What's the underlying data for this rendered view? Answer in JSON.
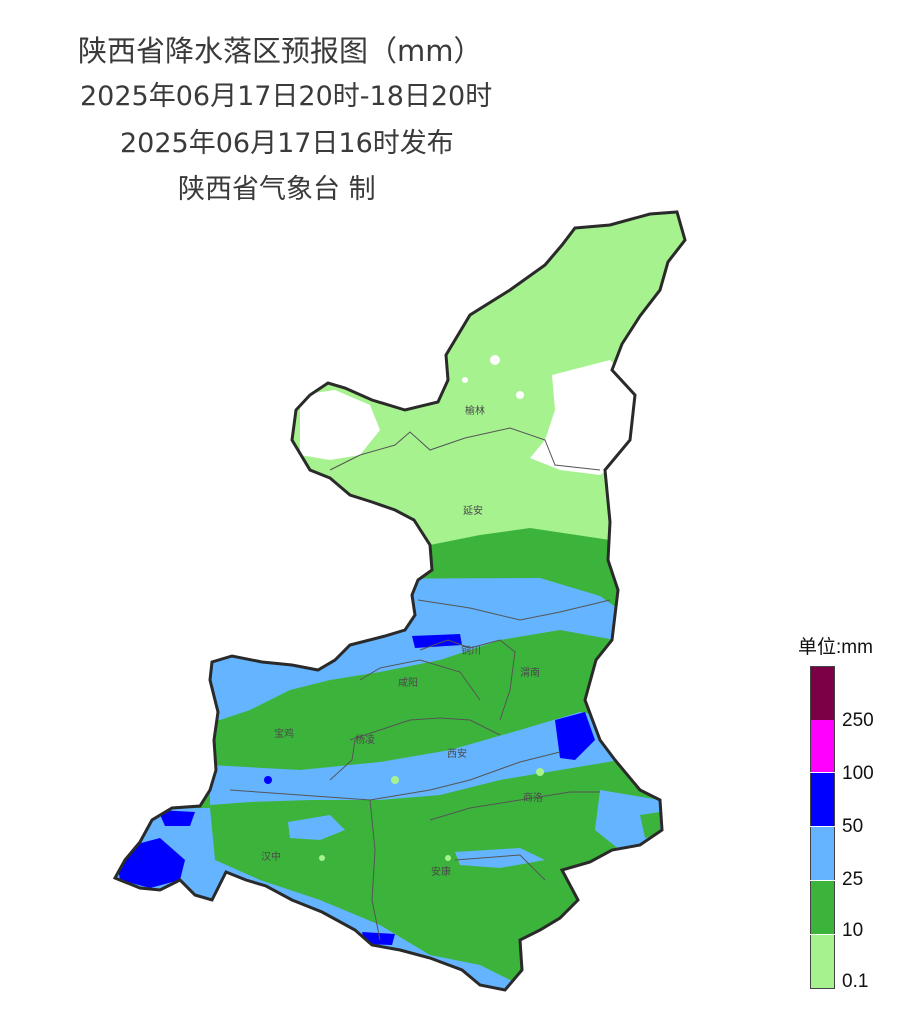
{
  "title": {
    "main": "陕西省降水落区预报图（mm）",
    "period": "2025年06月17日20时-18日20时",
    "issued": "2025年06月17日16时发布",
    "producer": "陕西省气象台 制"
  },
  "cities": [
    "榆林",
    "延安",
    "铜川",
    "咸阳",
    "渭南",
    "宝鸡",
    "杨凌",
    "西安",
    "商洛",
    "汉中",
    "安康"
  ],
  "legend": {
    "title": "单位:mm",
    "labels": [
      "250",
      "100",
      "50",
      "25",
      "10",
      "0.1"
    ],
    "colors": {
      "above_250": "#7b0046",
      "100_250": "#ff00ff",
      "50_100": "#0000ff",
      "25_50": "#64b4ff",
      "10_25": "#3cb43c",
      "0.1_10": "#a6f28f"
    }
  }
}
